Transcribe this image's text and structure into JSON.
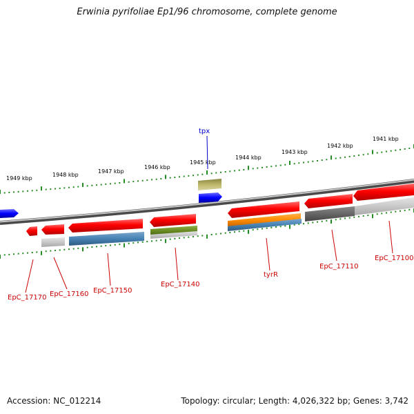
{
  "title": "Erwinia pyrifoliae Ep1/96 chromosome, complete genome",
  "footer": {
    "accession": "Accession: NC_012214",
    "topology": "Topology: circular; Length: 4,026,322 bp; Genes: 3,742"
  },
  "colors": {
    "red": "#ff0000",
    "blue": "#0000ff",
    "steelblue": "#4682b4",
    "olive": "#b8b46a",
    "green": "#6b8e23",
    "orange": "#ff8c00",
    "gray": "#c8c8c8",
    "darkgray": "#666666",
    "ticks": "#228b22",
    "label": "#cc0000",
    "tpx_label": "#0000cc"
  },
  "scale_labels": [
    "1949 kbp",
    "1948 kbp",
    "1947 kbp",
    "1946 kbp",
    "1945 kbp",
    "1944 kbp",
    "1943 kbp",
    "1942 kbp",
    "1941 kbp"
  ],
  "gene_labels": [
    "tpx",
    "EpC_17170",
    "EpC_17160",
    "EpC_17150",
    "EpC_17140",
    "tyrR",
    "EpC_17110",
    "EpC_17100"
  ]
}
